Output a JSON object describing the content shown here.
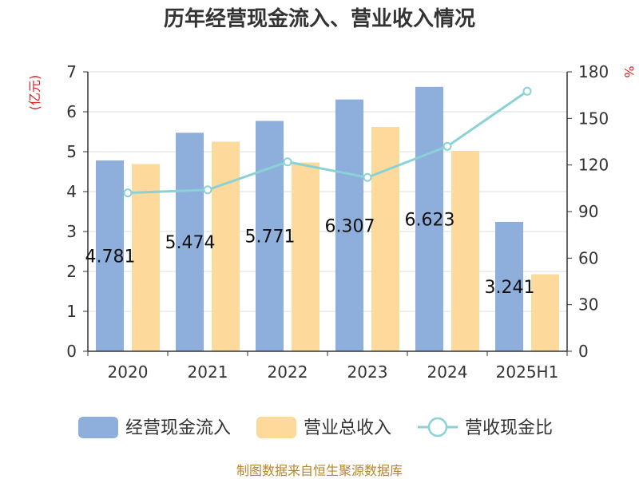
{
  "chart_data": {
    "type": "bar",
    "title": "历年经营现金流入、营业收入情况",
    "categories": [
      "2020",
      "2021",
      "2022",
      "2023",
      "2024",
      "2025H1"
    ],
    "series": [
      {
        "name": "经营现金流入",
        "kind": "bar",
        "axis": "left",
        "color": "#8eaedb",
        "values": [
          4.781,
          5.474,
          5.771,
          6.307,
          6.623,
          3.241
        ]
      },
      {
        "name": "营业总收入",
        "kind": "bar",
        "axis": "left",
        "color": "#fdd99b",
        "values": [
          4.69,
          5.25,
          4.73,
          5.62,
          5.02,
          1.93
        ]
      },
      {
        "name": "营收现金比",
        "kind": "line",
        "axis": "right",
        "color": "#8ad2d6",
        "values": [
          102,
          104,
          122,
          112,
          132,
          167.5
        ]
      }
    ],
    "data_labels": [
      "4.781",
      "5.474",
      "5.771",
      "6.307",
      "6.623",
      "3.241"
    ],
    "y_left": {
      "label": "(亿元)",
      "ylim": [
        0,
        7
      ],
      "ticks": [
        "0",
        "1",
        "2",
        "3",
        "4",
        "5",
        "6",
        "7"
      ]
    },
    "y_right": {
      "label": "%",
      "ylim": [
        0,
        180
      ],
      "ticks": [
        "0",
        "30",
        "60",
        "90",
        "120",
        "150",
        "180"
      ]
    },
    "grid": true,
    "legend_position": "bottom",
    "source": "制图数据来自恒生聚源数据库"
  }
}
